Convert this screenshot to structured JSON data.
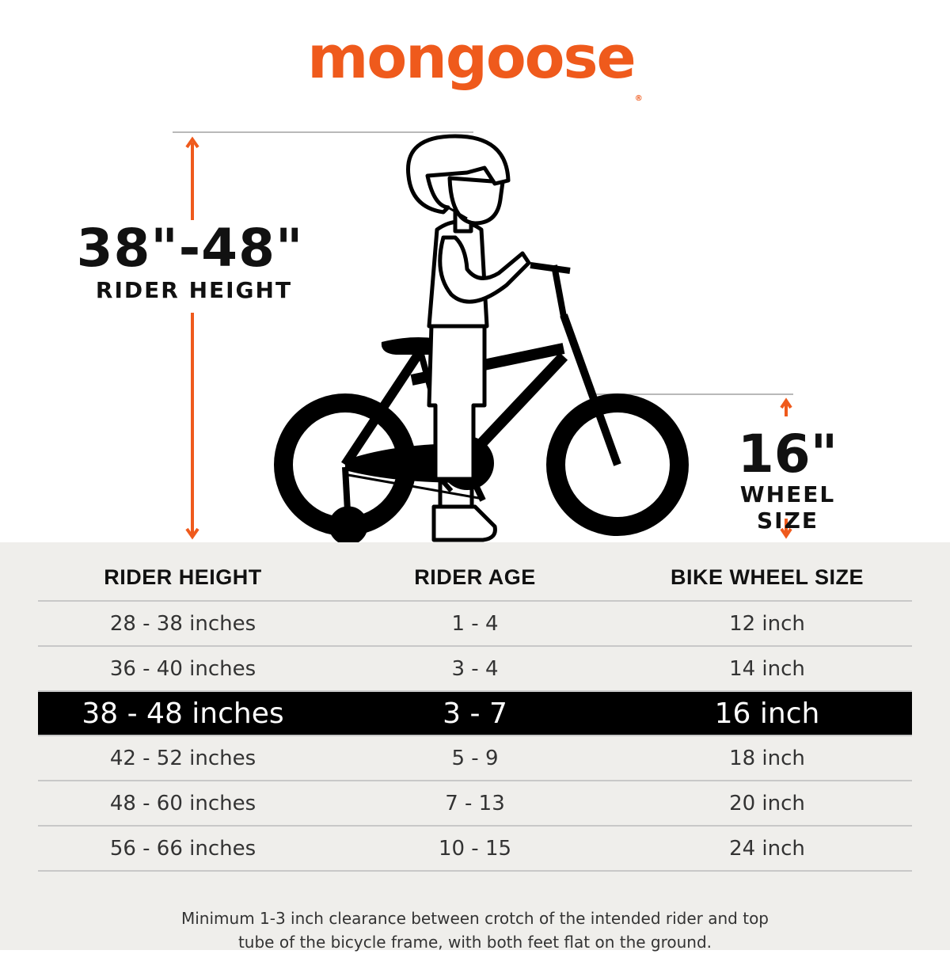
{
  "brand": {
    "name": "mongoose",
    "mark": "®",
    "color": "#ef5a1c"
  },
  "hero": {
    "rider_height_value": "38\"-48\"",
    "rider_height_caption": "RIDER HEIGHT",
    "wheel_size_value": "16\"",
    "wheel_size_caption": "WHEEL SIZE",
    "illustration": "child-on-bike-with-training-wheels"
  },
  "table": {
    "headers": [
      "RIDER HEIGHT",
      "RIDER AGE",
      "BIKE WHEEL SIZE"
    ],
    "rows": [
      [
        "28 - 38 inches",
        "1 - 4",
        "12 inch"
      ],
      [
        "36 - 40 inches",
        "3 - 4",
        "14 inch"
      ],
      [
        "38 - 48 inches",
        "3 - 7",
        "16 inch"
      ],
      [
        "42 - 52 inches",
        "5 - 9",
        "18 inch"
      ],
      [
        "48 - 60 inches",
        "7 - 13",
        "20 inch"
      ],
      [
        "56 - 66 inches",
        "10 - 15",
        "24 inch"
      ]
    ],
    "highlighted_row": 2
  },
  "footnote": {
    "line1": "Minimum 1-3 inch clearance between crotch of the intended rider and top",
    "line2": "tube of the bicycle frame, with both feet flat on the ground."
  }
}
